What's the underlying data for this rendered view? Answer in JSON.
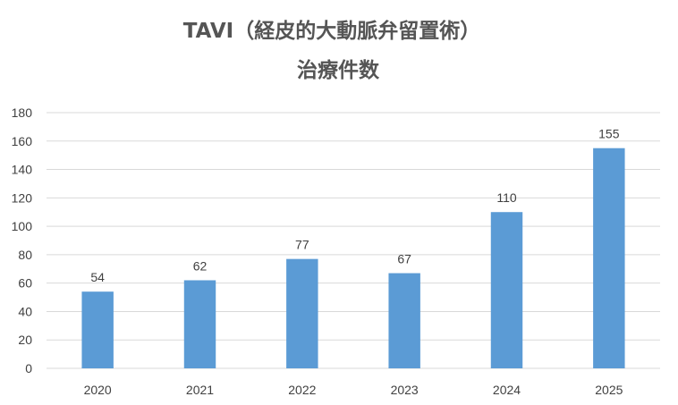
{
  "chart_data": {
    "type": "bar",
    "title_line1": "TAVI（経皮的大動脈弁留置術）",
    "title_line2": "治療件数",
    "categories": [
      "2020",
      "2021",
      "2022",
      "2023",
      "2024",
      "2025"
    ],
    "values": [
      54,
      62,
      77,
      67,
      110,
      155
    ],
    "ylim": [
      0,
      180
    ],
    "yticks": [
      "0",
      "20",
      "40",
      "60",
      "80",
      "100",
      "120",
      "140",
      "160",
      "180"
    ],
    "grid": true,
    "legend": "none",
    "bar_color": "#5B9BD5",
    "grid_color": "#D9D9D9"
  }
}
